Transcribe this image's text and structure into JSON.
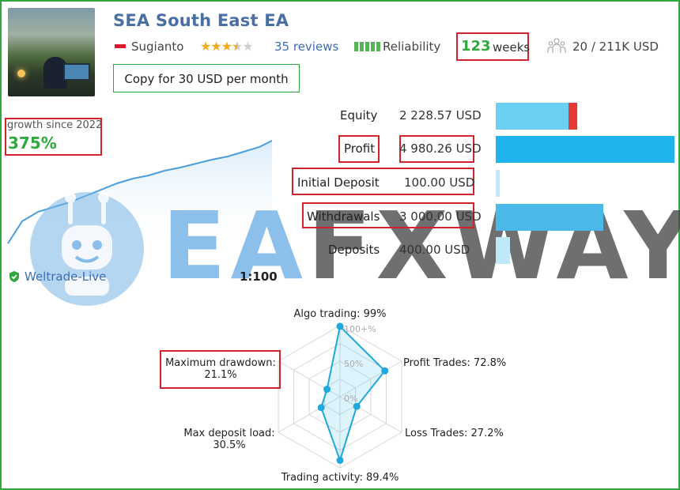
{
  "header": {
    "title": "SEA South East EA",
    "author": "Sugianto",
    "rating_stars": 3.5,
    "reviews": "35 reviews",
    "reliability_label": "Reliability",
    "weeks_value": "123",
    "weeks_label": "weeks",
    "subscribers": "20 / 211K USD",
    "copy_button": "Copy for 30 USD per month"
  },
  "growth": {
    "label": "growth since 2022",
    "value": "375%"
  },
  "stats": [
    {
      "label": "Equity",
      "value": "2 228.57 USD",
      "fraction": 0.45
    },
    {
      "label": "Profit",
      "value": "4 980.26 USD",
      "fraction": 1.0
    },
    {
      "label": "Initial Deposit",
      "value": "100.00 USD",
      "fraction": 0.02
    },
    {
      "label": "Withdrawals",
      "value": "3 000.00 USD",
      "fraction": 0.6
    },
    {
      "label": "Deposits",
      "value": "400.00 USD",
      "fraction": 0.08
    }
  ],
  "broker": "Weltrade-Live",
  "leverage": "1:100",
  "watermark": {
    "text_ea": "EA",
    "text_rest": "FXWAY"
  },
  "radar": {
    "algo_trading": "Algo trading: 99%",
    "profit_trades": "Profit Trades: 72.8%",
    "loss_trades": "Loss Trades: 27.2%",
    "trading_activity": "Trading activity: 89.4%",
    "max_deposit_load_label": "Max deposit load:",
    "max_deposit_load_value": "30.5%",
    "max_drawdown_label": "Maximum drawdown:",
    "max_drawdown_value": "21.1%",
    "scale_100": "100+%",
    "scale_50": "50%",
    "scale_0": "0%",
    "values": [
      99,
      72.8,
      27.2,
      89.4,
      30.5,
      21.1
    ]
  },
  "colors": {
    "accent_green": "#2fa83d",
    "highlight_red": "#d0232b",
    "title_blue": "#4a6fa5",
    "bar_blue": "#1fb2ec",
    "bar_light": "#6cd0f5"
  }
}
